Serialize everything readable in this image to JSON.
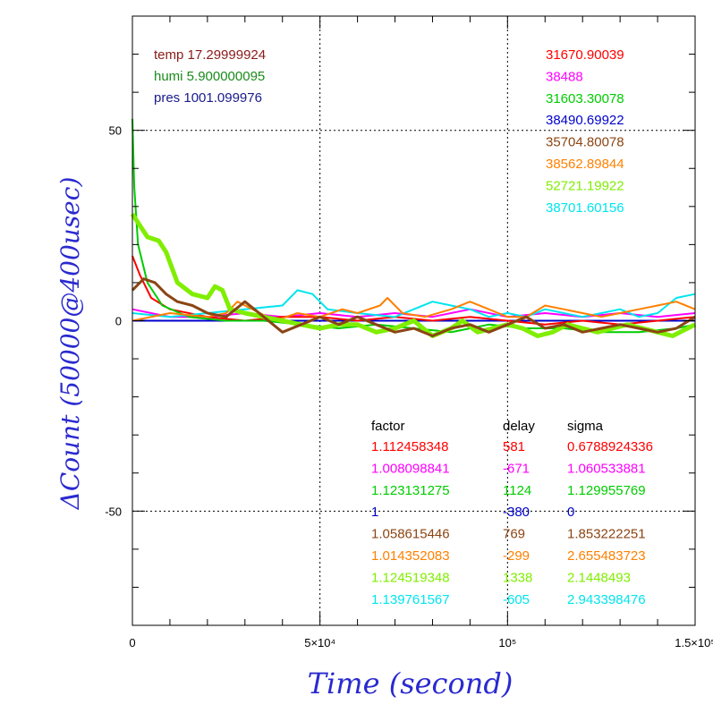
{
  "chart_data": {
    "type": "line",
    "xlabel": "Time (second)",
    "ylabel": "ΔCount (50000@400usec)",
    "xlim": [
      0,
      150000
    ],
    "ylim": [
      -80,
      80
    ],
    "x_ticks": [
      {
        "value": 0,
        "label": "0"
      },
      {
        "value": 50000,
        "label": "5×10⁴"
      },
      {
        "value": 100000,
        "label": "10⁵"
      },
      {
        "value": 150000,
        "label": "1.5×10⁵"
      }
    ],
    "y_ticks": [
      {
        "value": 50,
        "label": "50"
      },
      {
        "value": 0,
        "label": "0"
      },
      {
        "value": -50,
        "label": "-50"
      }
    ],
    "grid": "dotted at major ticks",
    "env": [
      {
        "text": "temp 17.29999924",
        "color": "#8b1a1a"
      },
      {
        "text": "humi 5.900000095",
        "color": "#1a8b1a"
      },
      {
        "text": "pres 1001.099976",
        "color": "#1a1a8b"
      }
    ],
    "table_headers": [
      "factor",
      "delay",
      "sigma"
    ],
    "series": [
      {
        "color": "#ff0000",
        "baseline": "31670.90039",
        "factor": "1.112458348",
        "delay": "581",
        "sigma": "0.6788924336",
        "points": [
          [
            0,
            17
          ],
          [
            2000,
            12
          ],
          [
            5000,
            6
          ],
          [
            10000,
            3
          ],
          [
            20000,
            1
          ],
          [
            30000,
            0
          ],
          [
            40000,
            1
          ],
          [
            50000,
            1
          ],
          [
            60000,
            0
          ],
          [
            70000,
            1
          ],
          [
            80000,
            0
          ],
          [
            90000,
            1
          ],
          [
            100000,
            0
          ],
          [
            110000,
            -1
          ],
          [
            120000,
            0
          ],
          [
            130000,
            -1
          ],
          [
            140000,
            0
          ],
          [
            150000,
            1
          ]
        ]
      },
      {
        "color": "#ff00ff",
        "baseline": "38488",
        "factor": "1.008098841",
        "delay": "-671",
        "sigma": "1.060533881",
        "points": [
          [
            0,
            3
          ],
          [
            5000,
            2
          ],
          [
            10000,
            1
          ],
          [
            20000,
            1
          ],
          [
            30000,
            2
          ],
          [
            40000,
            1
          ],
          [
            50000,
            2
          ],
          [
            60000,
            1
          ],
          [
            70000,
            2
          ],
          [
            80000,
            1
          ],
          [
            90000,
            3
          ],
          [
            100000,
            1
          ],
          [
            110000,
            2
          ],
          [
            120000,
            1
          ],
          [
            130000,
            2
          ],
          [
            140000,
            1
          ],
          [
            150000,
            2
          ]
        ]
      },
      {
        "color": "#00cc00",
        "baseline": "31603.30078",
        "factor": "1.123131275",
        "delay": "1124",
        "sigma": "1.129955769",
        "points": [
          [
            0,
            53
          ],
          [
            500,
            35
          ],
          [
            1500,
            20
          ],
          [
            4000,
            10
          ],
          [
            8000,
            4
          ],
          [
            15000,
            1
          ],
          [
            25000,
            0
          ],
          [
            35000,
            0
          ],
          [
            45000,
            -1
          ],
          [
            55000,
            -2
          ],
          [
            65000,
            -1
          ],
          [
            75000,
            -2
          ],
          [
            85000,
            -3
          ],
          [
            95000,
            -1
          ],
          [
            105000,
            -2
          ],
          [
            115000,
            -2
          ],
          [
            125000,
            -3
          ],
          [
            135000,
            -3
          ],
          [
            145000,
            -2
          ],
          [
            150000,
            -1
          ]
        ]
      },
      {
        "color": "#0000cc",
        "baseline": "38490.69922",
        "factor": "1",
        "delay": "-380",
        "sigma": "0",
        "points": [
          [
            0,
            0
          ],
          [
            150000,
            0
          ]
        ]
      },
      {
        "color": "#8b4513",
        "baseline": "35704.80078",
        "factor": "1.058615446",
        "delay": "769",
        "sigma": "1.853222251",
        "points": [
          [
            0,
            8
          ],
          [
            3000,
            11
          ],
          [
            6000,
            10
          ],
          [
            9000,
            7
          ],
          [
            12000,
            5
          ],
          [
            16000,
            4
          ],
          [
            20000,
            2
          ],
          [
            25000,
            1
          ],
          [
            30000,
            5
          ],
          [
            35000,
            1
          ],
          [
            40000,
            -3
          ],
          [
            45000,
            -1
          ],
          [
            50000,
            1
          ],
          [
            55000,
            -1
          ],
          [
            60000,
            1
          ],
          [
            65000,
            -1
          ],
          [
            70000,
            -3
          ],
          [
            75000,
            -2
          ],
          [
            80000,
            -4
          ],
          [
            85000,
            -2
          ],
          [
            90000,
            -1
          ],
          [
            95000,
            -3
          ],
          [
            100000,
            -1
          ],
          [
            105000,
            1
          ],
          [
            110000,
            -2
          ],
          [
            115000,
            -1
          ],
          [
            120000,
            -3
          ],
          [
            125000,
            -2
          ],
          [
            130000,
            -1
          ],
          [
            135000,
            -2
          ],
          [
            140000,
            -3
          ],
          [
            145000,
            -2
          ],
          [
            150000,
            1
          ]
        ]
      },
      {
        "color": "#ff8000",
        "baseline": "38562.89844",
        "factor": "1.014352083",
        "delay": "-299",
        "sigma": "2.655483723",
        "points": [
          [
            0,
            0
          ],
          [
            10000,
            2
          ],
          [
            20000,
            1
          ],
          [
            25000,
            2
          ],
          [
            28000,
            5
          ],
          [
            32000,
            3
          ],
          [
            38000,
            0
          ],
          [
            44000,
            2
          ],
          [
            50000,
            1
          ],
          [
            56000,
            3
          ],
          [
            60000,
            2
          ],
          [
            66000,
            4
          ],
          [
            68000,
            6
          ],
          [
            72000,
            2
          ],
          [
            78000,
            1
          ],
          [
            85000,
            3
          ],
          [
            90000,
            5
          ],
          [
            95000,
            3
          ],
          [
            100000,
            1
          ],
          [
            105000,
            1
          ],
          [
            110000,
            4
          ],
          [
            115000,
            3
          ],
          [
            120000,
            2
          ],
          [
            125000,
            1
          ],
          [
            130000,
            2
          ],
          [
            135000,
            3
          ],
          [
            140000,
            4
          ],
          [
            145000,
            5
          ],
          [
            150000,
            3
          ]
        ]
      },
      {
        "color": "#80ee00",
        "baseline": "52721.19922",
        "factor": "1.124519348",
        "delay": "1338",
        "sigma": "2.1448493",
        "points": [
          [
            0,
            28
          ],
          [
            2000,
            25
          ],
          [
            4000,
            22
          ],
          [
            7000,
            21
          ],
          [
            9000,
            18
          ],
          [
            12000,
            10
          ],
          [
            16000,
            7
          ],
          [
            20000,
            6
          ],
          [
            22000,
            9
          ],
          [
            24000,
            8
          ],
          [
            26000,
            3
          ],
          [
            30000,
            2
          ],
          [
            35000,
            1
          ],
          [
            40000,
            0
          ],
          [
            45000,
            -1
          ],
          [
            50000,
            -2
          ],
          [
            55000,
            -1
          ],
          [
            60000,
            -1
          ],
          [
            65000,
            -3
          ],
          [
            70000,
            -2
          ],
          [
            75000,
            0
          ],
          [
            80000,
            -4
          ],
          [
            85000,
            -2
          ],
          [
            88000,
            0
          ],
          [
            92000,
            -3
          ],
          [
            96000,
            -2
          ],
          [
            100000,
            -1
          ],
          [
            104000,
            -2
          ],
          [
            108000,
            -4
          ],
          [
            112000,
            -3
          ],
          [
            116000,
            -1
          ],
          [
            120000,
            -2
          ],
          [
            124000,
            -3
          ],
          [
            128000,
            -2
          ],
          [
            132000,
            -1
          ],
          [
            136000,
            -2
          ],
          [
            140000,
            -3
          ],
          [
            144000,
            -4
          ],
          [
            148000,
            -2
          ],
          [
            150000,
            -1
          ]
        ]
      },
      {
        "color": "#00e5ee",
        "baseline": "38701.60156",
        "factor": "1.139761567",
        "delay": "-605",
        "sigma": "2.943398476",
        "points": [
          [
            0,
            2
          ],
          [
            10000,
            1
          ],
          [
            20000,
            2
          ],
          [
            30000,
            3
          ],
          [
            40000,
            4
          ],
          [
            44000,
            8
          ],
          [
            48000,
            7
          ],
          [
            52000,
            3
          ],
          [
            60000,
            2
          ],
          [
            70000,
            1
          ],
          [
            75000,
            3
          ],
          [
            80000,
            5
          ],
          [
            85000,
            4
          ],
          [
            90000,
            3
          ],
          [
            95000,
            1
          ],
          [
            100000,
            2
          ],
          [
            105000,
            1
          ],
          [
            110000,
            3
          ],
          [
            115000,
            2
          ],
          [
            120000,
            1
          ],
          [
            125000,
            2
          ],
          [
            130000,
            3
          ],
          [
            135000,
            1
          ],
          [
            140000,
            2
          ],
          [
            145000,
            6
          ],
          [
            150000,
            7
          ]
        ]
      }
    ]
  }
}
